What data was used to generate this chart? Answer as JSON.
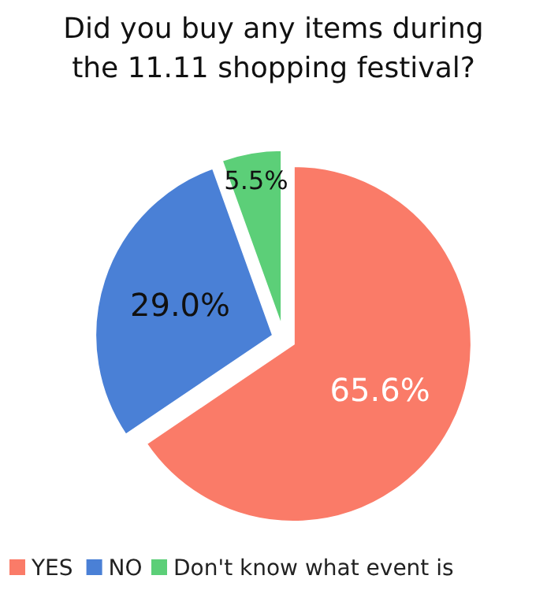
{
  "chart_data": {
    "type": "pie",
    "title": "Did you buy any items during the 11.11 shopping festival?",
    "categories": [
      "YES",
      "NO",
      "Don't know what event is"
    ],
    "values": [
      65.6,
      29.0,
      5.5
    ],
    "colors": [
      "#fa7b68",
      "#4a80d6",
      "#5ccf78"
    ],
    "value_labels": [
      "65.6%",
      "29.0%",
      "5.5%"
    ],
    "legend": "bottom"
  }
}
